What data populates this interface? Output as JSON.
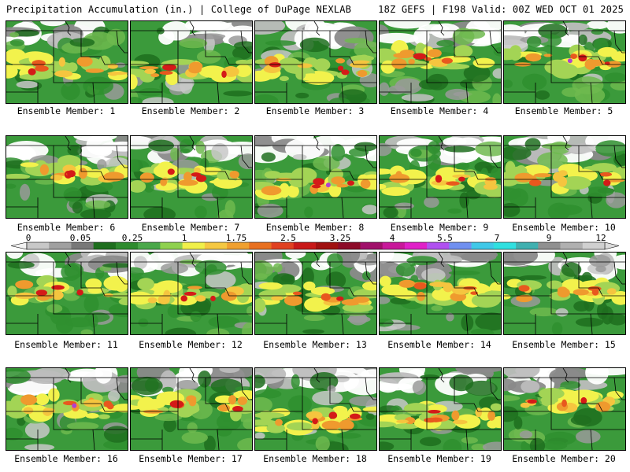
{
  "header": {
    "left": "Precipitation Accumulation (in.) | College of DuPage NEXLAB",
    "right": "18Z GEFS | F198 Valid: 00Z WED OCT 01 2025"
  },
  "members": [
    "Ensemble Member: 1",
    "Ensemble Member: 2",
    "Ensemble Member: 3",
    "Ensemble Member: 4",
    "Ensemble Member: 5",
    "Ensemble Member: 6",
    "Ensemble Member: 7",
    "Ensemble Member: 8",
    "Ensemble Member: 9",
    "Ensemble Member: 10",
    "Ensemble Member: 11",
    "Ensemble Member: 12",
    "Ensemble Member: 13",
    "Ensemble Member: 14",
    "Ensemble Member: 15",
    "Ensemble Member: 16",
    "Ensemble Member: 17",
    "Ensemble Member: 18",
    "Ensemble Member: 19",
    "Ensemble Member: 20"
  ],
  "colorbar": {
    "tick_labels": [
      "0",
      "0.05",
      "0.25",
      "1",
      "1.75",
      "2.5",
      "3.25",
      "4",
      "5.5",
      "7",
      "9",
      "12"
    ],
    "colors": [
      "#c8c8c8",
      "#a0a0a0",
      "#787878",
      "#1e6e1e",
      "#2e8b2e",
      "#4aa84a",
      "#8fd14f",
      "#f0f04a",
      "#f5c842",
      "#f0a030",
      "#e87020",
      "#e04020",
      "#c81818",
      "#a01010",
      "#8c0a28",
      "#a0106a",
      "#c8189a",
      "#e020c8",
      "#b050f0",
      "#7090f0",
      "#40c8e8",
      "#30e0e0",
      "#40b0b0",
      "#909090",
      "#b0b0b0",
      "#d0d0d0"
    ]
  }
}
